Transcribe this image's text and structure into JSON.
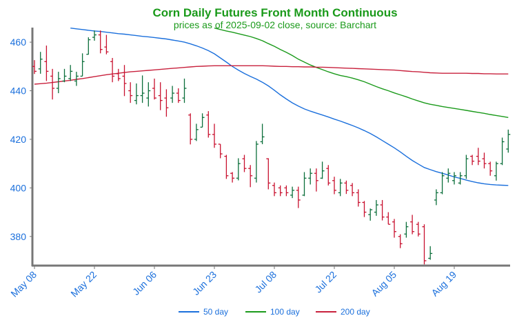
{
  "chart_data": {
    "type": "ohlc",
    "title": "Corn Daily Futures Front Month Continuous",
    "subtitle": "prices as of 2025-09-02 close, source: Barchart",
    "categories": [
      "May 08",
      null,
      null,
      null,
      null,
      null,
      null,
      null,
      null,
      null,
      "May 22",
      null,
      null,
      null,
      null,
      null,
      null,
      null,
      null,
      null,
      "Jun 06",
      null,
      null,
      null,
      null,
      null,
      null,
      null,
      null,
      null,
      "Jun 23",
      null,
      null,
      null,
      null,
      null,
      null,
      null,
      null,
      null,
      "Jul 08",
      null,
      null,
      null,
      null,
      null,
      null,
      null,
      null,
      null,
      "Jul 22",
      null,
      null,
      null,
      null,
      null,
      null,
      null,
      null,
      null,
      "Aug 05",
      null,
      null,
      null,
      null,
      null,
      null,
      null,
      null,
      null,
      "Aug 19",
      null,
      null,
      null,
      null,
      null,
      null,
      null,
      null,
      null
    ],
    "open": [
      450,
      449,
      452,
      446,
      441,
      444,
      445,
      444,
      446,
      455,
      462,
      463,
      458,
      452,
      447,
      446,
      440,
      436,
      438,
      437,
      441,
      438,
      437,
      437,
      439,
      437,
      430,
      420,
      425,
      430,
      422,
      418,
      413,
      406,
      404,
      412,
      408,
      404,
      419,
      412,
      401,
      400,
      400,
      397,
      399,
      397,
      404,
      406,
      404,
      408,
      403,
      398,
      402,
      401,
      398,
      394,
      389,
      390,
      393,
      388,
      386,
      380,
      381,
      386,
      385,
      384,
      371,
      395,
      398,
      404,
      403,
      402,
      405,
      413,
      413,
      412,
      410,
      405,
      410,
      416
    ],
    "high": [
      452.6,
      456,
      458.6,
      449,
      447.8,
      449,
      450.6,
      447.8,
      455.4,
      462,
      464.8,
      464.8,
      463,
      453.5,
      449,
      450.6,
      443.5,
      443,
      446.3,
      443.5,
      445,
      443.5,
      440.6,
      442,
      441,
      445,
      430.7,
      426.4,
      430.7,
      431.6,
      426.4,
      418,
      413.6,
      406.5,
      412.2,
      413.6,
      409.4,
      419.3,
      426.4,
      412.2,
      402.2,
      401,
      401,
      400.5,
      400.5,
      406.5,
      408,
      408,
      410.8,
      409.4,
      404.6,
      403.7,
      403,
      402,
      399.4,
      394.6,
      391.5,
      395,
      395,
      390,
      387.2,
      380.9,
      386,
      388.9,
      386,
      385,
      376,
      399.4,
      406.5,
      408,
      406.5,
      406.5,
      413.6,
      413.6,
      416.5,
      414.5,
      410.8,
      410.8,
      420.7,
      424
    ],
    "low": [
      446.9,
      447,
      444,
      436.4,
      439,
      443.5,
      444,
      442,
      446,
      454.9,
      460.6,
      455.4,
      455,
      443.5,
      444,
      437.8,
      435,
      434.4,
      435,
      433.5,
      436.4,
      432,
      429.3,
      435,
      435,
      435,
      417.9,
      419.3,
      425,
      420.7,
      416.5,
      412.2,
      403.7,
      402.2,
      403.1,
      406.5,
      400.3,
      402.2,
      418,
      399.4,
      396.6,
      396.6,
      396.6,
      395.8,
      391.7,
      396.6,
      401.4,
      398.5,
      403.7,
      401,
      397.4,
      396.6,
      397.5,
      396.6,
      392.3,
      388,
      386.5,
      388.5,
      386.6,
      385,
      379.5,
      375.2,
      379.5,
      380.9,
      380,
      368.5,
      370.4,
      392.9,
      397.4,
      402.2,
      401.4,
      401.4,
      403.7,
      409.4,
      409.4,
      408,
      405,
      403,
      409.4,
      414.5
    ],
    "close": [
      448,
      453,
      448,
      441,
      445,
      446,
      448,
      446,
      452,
      461,
      463,
      457,
      456,
      446,
      445,
      443,
      438,
      438,
      439,
      440,
      437,
      436,
      433,
      439,
      436,
      441,
      420,
      424,
      429,
      422,
      418,
      414,
      405,
      404,
      410,
      408,
      405,
      418,
      421,
      402,
      398,
      398,
      398,
      399,
      395,
      404,
      406,
      403,
      407,
      402,
      399,
      402,
      399,
      398,
      394,
      390,
      391,
      393,
      388,
      385,
      382,
      377,
      384,
      382,
      381,
      370,
      373,
      398,
      405,
      406,
      405,
      405,
      412,
      411,
      411,
      410,
      407,
      410,
      419,
      422
    ],
    "up_color": "#0b6e3a",
    "down_color": "#c8102e",
    "series": [
      {
        "name": "50 day",
        "color": "#1a6fdc",
        "values": [
          null,
          null,
          null,
          null,
          null,
          null,
          465.8,
          465.5,
          465.2,
          464.9,
          464.6,
          464.4,
          464.1,
          463.8,
          463.5,
          463.3,
          463.0,
          462.7,
          462.4,
          462.2,
          461.9,
          461.6,
          461.3,
          460.9,
          460.5,
          460.0,
          459.3,
          458.5,
          457.6,
          456.5,
          455.2,
          453.5,
          451.8,
          450.0,
          448.5,
          447.1,
          445.9,
          444.8,
          443.5,
          442.0,
          440.2,
          438.3,
          436.6,
          435.0,
          433.7,
          432.5,
          431.6,
          430.8,
          430.0,
          429.2,
          428.3,
          427.5,
          426.6,
          425.7,
          424.7,
          423.6,
          422.4,
          421.0,
          419.5,
          418.0,
          416.5,
          414.8,
          413.0,
          411.3,
          409.8,
          408.4,
          407.5,
          406.7,
          406.0,
          405.3,
          404.5,
          403.9,
          403.2,
          402.6,
          402.1,
          401.7,
          401.4,
          401.2,
          401.1,
          401.0
        ]
      },
      {
        "name": "100 day",
        "color": "#1a9a1a",
        "values": [
          null,
          null,
          null,
          null,
          null,
          null,
          null,
          null,
          null,
          null,
          null,
          null,
          null,
          null,
          null,
          null,
          null,
          null,
          null,
          null,
          null,
          null,
          null,
          null,
          null,
          null,
          null,
          null,
          null,
          null,
          465.8,
          465.2,
          464.6,
          464.1,
          463.5,
          462.9,
          462.3,
          461.5,
          460.6,
          459.4,
          458.3,
          457.0,
          455.8,
          454.5,
          453.0,
          451.8,
          450.6,
          449.6,
          448.7,
          447.8,
          447.0,
          446.3,
          445.8,
          445.2,
          444.5,
          443.7,
          442.7,
          441.7,
          440.8,
          440.0,
          439.1,
          438.3,
          437.5,
          436.6,
          435.8,
          435.0,
          434.4,
          434.0,
          433.5,
          433.1,
          432.7,
          432.3,
          431.9,
          431.5,
          431.1,
          430.7,
          430.2,
          429.8,
          429.4,
          429.0
        ]
      },
      {
        "name": "200 day",
        "color": "#c8203c",
        "values": [
          442.7,
          442.9,
          443.1,
          443.4,
          443.7,
          444.0,
          444.3,
          444.7,
          445.0,
          445.4,
          445.8,
          446.2,
          446.6,
          446.9,
          447.2,
          447.5,
          447.8,
          448.0,
          448.2,
          448.4,
          448.6,
          448.8,
          449.0,
          449.2,
          449.4,
          449.6,
          449.8,
          450.0,
          450.1,
          450.2,
          450.3,
          450.3,
          450.3,
          450.3,
          450.3,
          450.3,
          450.3,
          450.3,
          450.3,
          450.2,
          450.1,
          450.0,
          450.0,
          449.9,
          449.9,
          449.8,
          449.8,
          449.7,
          449.7,
          449.6,
          449.5,
          449.4,
          449.3,
          449.2,
          449.1,
          449.0,
          448.9,
          448.8,
          448.7,
          448.6,
          448.5,
          448.3,
          448.1,
          447.9,
          447.8,
          447.6,
          447.4,
          447.3,
          447.2,
          447.2,
          447.2,
          447.2,
          447.2,
          447.1,
          447.1,
          447.0,
          447.0,
          446.9,
          446.9,
          446.9
        ]
      }
    ],
    "ylim": [
      368,
      466
    ],
    "yticks": [
      380,
      400,
      420,
      440,
      460
    ],
    "grid": false,
    "legend": "bottom"
  }
}
